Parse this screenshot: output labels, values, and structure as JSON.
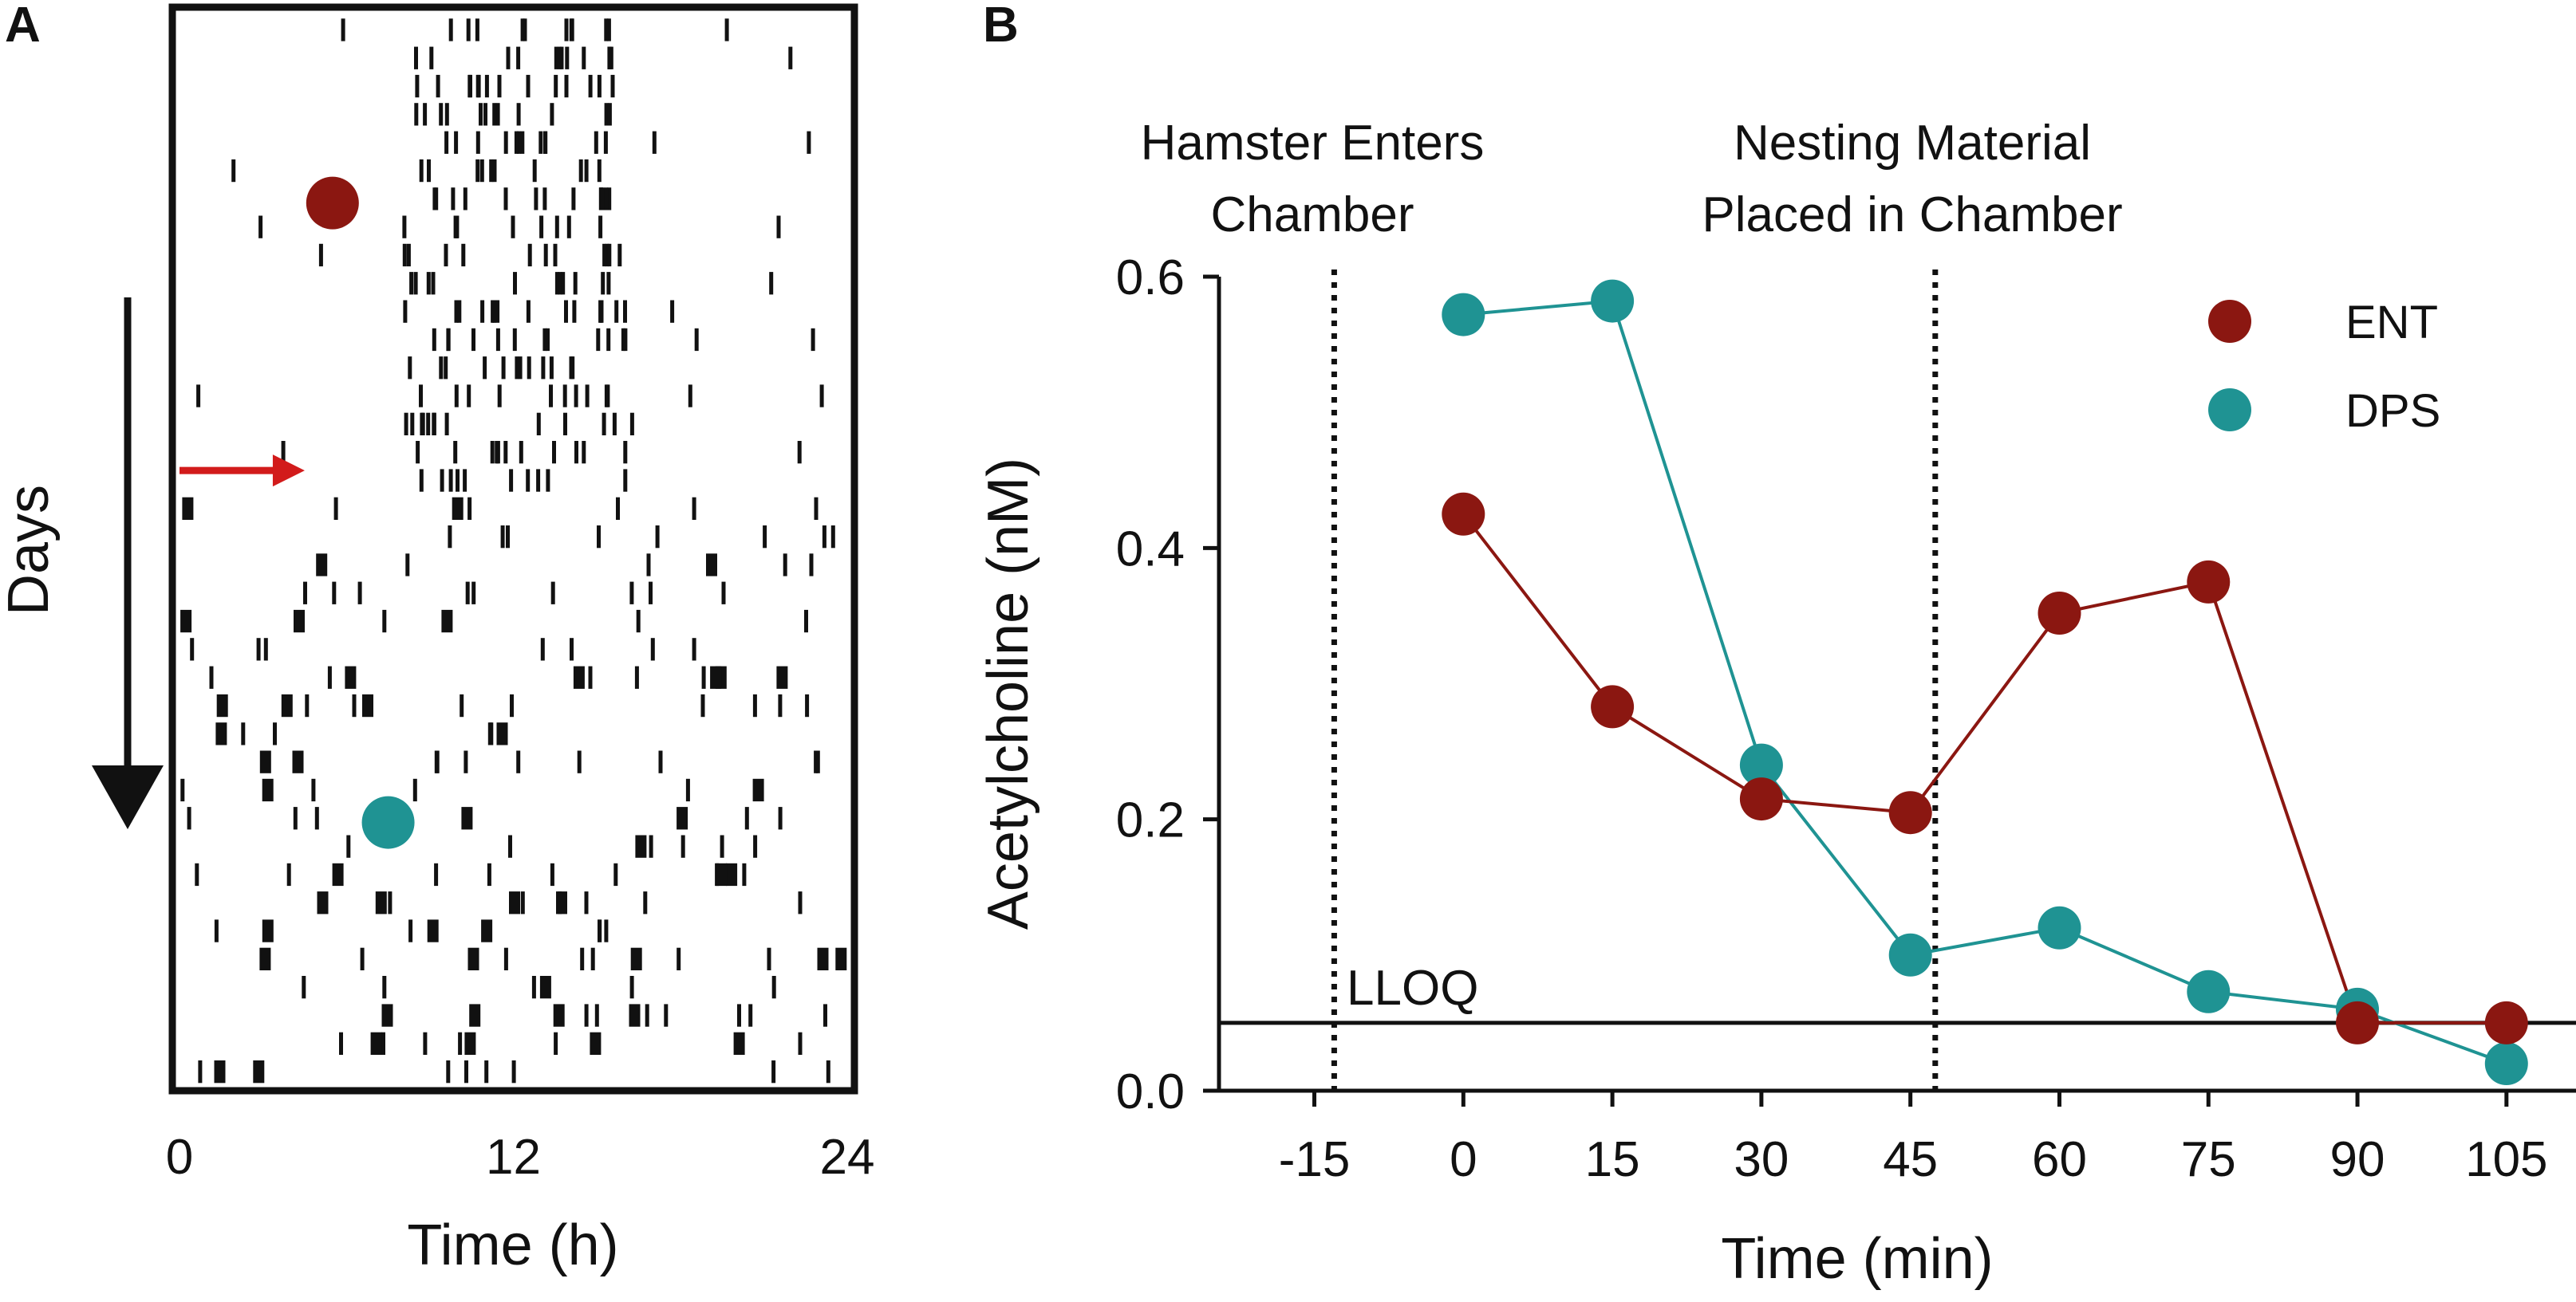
{
  "panels": {
    "a": {
      "letter": "A"
    },
    "b": {
      "letter": "B"
    }
  },
  "colors": {
    "ent": "#8b1711",
    "dps": "#1f9393",
    "arrow_red": "#d21b1b",
    "ink": "#111111"
  },
  "chart_data": [
    {
      "panel": "A",
      "type": "raster",
      "description": "Actogram of activity across days",
      "xlabel": "Time (h)",
      "ylabel": "Days",
      "xlim": [
        0,
        24
      ],
      "xticks": [
        {
          "value": 0,
          "label": "0"
        },
        {
          "value": 12,
          "label": "12"
        },
        {
          "value": 24,
          "label": "24"
        }
      ],
      "days": 38,
      "markers": [
        {
          "name": "ENT",
          "day": 7,
          "hour": 5.5,
          "color": "#8b1711"
        },
        {
          "name": "DPS",
          "day": 29,
          "hour": 7.5,
          "color": "#1f9393"
        }
      ],
      "arrow": {
        "day": 17,
        "hour": 4.5,
        "color": "#d21b1b"
      }
    },
    {
      "panel": "B",
      "type": "line",
      "xlabel": "Time (min)",
      "ylabel": "Acetylcholine (nM)",
      "xlim": [
        -25,
        112
      ],
      "ylim": [
        0,
        0.6
      ],
      "xticks": [
        {
          "value": -15,
          "label": "-15"
        },
        {
          "value": 0,
          "label": "0"
        },
        {
          "value": 15,
          "label": "15"
        },
        {
          "value": 30,
          "label": "30"
        },
        {
          "value": 45,
          "label": "45"
        },
        {
          "value": 60,
          "label": "60"
        },
        {
          "value": 75,
          "label": "75"
        },
        {
          "value": 90,
          "label": "90"
        },
        {
          "value": 105,
          "label": "105"
        }
      ],
      "yticks": [
        {
          "value": 0,
          "label": "0.0"
        },
        {
          "value": 0.2,
          "label": "0.2"
        },
        {
          "value": 0.4,
          "label": "0.4"
        },
        {
          "value": 0.6,
          "label": "0.6"
        }
      ],
      "series": [
        {
          "name": "ENT",
          "color": "#8b1711",
          "x": [
            0,
            15,
            30,
            45,
            60,
            75,
            90,
            105
          ],
          "values": [
            0.425,
            0.283,
            0.215,
            0.205,
            0.352,
            0.375,
            0.05,
            0.05
          ]
        },
        {
          "name": "DPS",
          "color": "#1f9393",
          "x": [
            0,
            15,
            30,
            45,
            60,
            75,
            90,
            105
          ],
          "values": [
            0.572,
            0.582,
            0.24,
            0.1,
            0.12,
            0.073,
            0.06,
            0.02
          ]
        }
      ],
      "reference_lines": [
        {
          "orientation": "vertical",
          "x": -13,
          "style": "dotted",
          "label_line1": "Hamster Enters",
          "label_line2": "Chamber"
        },
        {
          "orientation": "vertical",
          "x": 47.5,
          "style": "dotted",
          "label_line1": "Nesting Material",
          "label_line2": "Placed in Chamber"
        },
        {
          "orientation": "horizontal",
          "y": 0.05,
          "style": "solid",
          "label": "LLOQ"
        }
      ],
      "legend": {
        "position": "top-right",
        "entries": [
          "ENT",
          "DPS"
        ]
      }
    }
  ]
}
